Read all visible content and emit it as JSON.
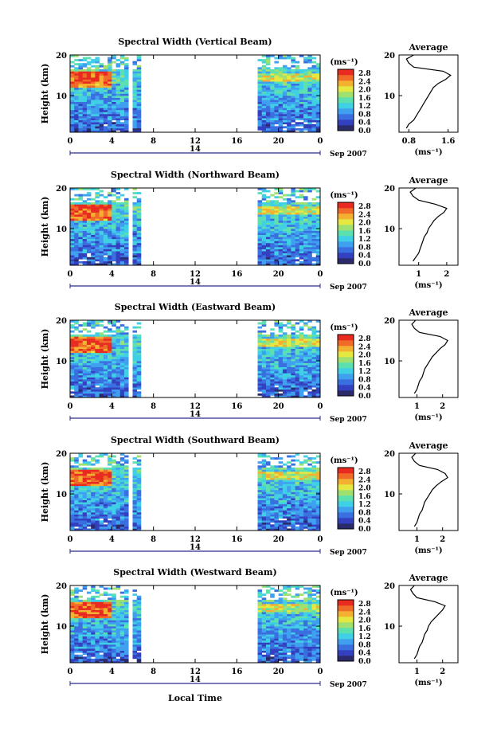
{
  "figure": {
    "date_label": "Sep 2007",
    "day_label": "14",
    "xlabel": "Local Time",
    "ylabel": "Height (km)",
    "unit_label": "(ms⁻¹)",
    "average_title": "Average"
  },
  "colors": {
    "scale": [
      "#2b2b6b",
      "#3340c0",
      "#3a6fe0",
      "#3fa0f0",
      "#40d0e6",
      "#5ce0b0",
      "#a0e070",
      "#e4e840",
      "#f4b030",
      "#f06a28",
      "#e82a20"
    ],
    "data_gap": "#ffffff",
    "average_line": "#000000"
  },
  "chart_data": [
    {
      "type": "heatmap",
      "title": "Spectral Width (Vertical Beam)",
      "x_ticks": [
        "0",
        "4",
        "8",
        "12",
        "16",
        "20",
        "0"
      ],
      "xlim": [
        0,
        24
      ],
      "ylim": [
        1,
        20
      ],
      "y_ticks": [
        "10",
        "20"
      ],
      "data_gaps_hours": [
        [
          6.9,
          17.8
        ],
        [
          5.8,
          6.0
        ]
      ],
      "colorbar": {
        "ticks": [
          "0.0",
          "0.4",
          "0.8",
          "1.2",
          "1.6",
          "2.0",
          "2.4",
          "2.8"
        ],
        "range": [
          0,
          3.0
        ]
      },
      "average": {
        "title": "Average",
        "xlabel": "(ms⁻¹)",
        "x_ticks": [
          "0.8",
          "1.6"
        ],
        "xlim": [
          0.6,
          1.8
        ],
        "height_km": [
          2,
          3,
          4,
          5,
          6,
          7,
          8,
          9,
          10,
          11,
          12,
          13,
          14,
          15,
          16,
          17,
          18,
          19,
          20
        ],
        "values": [
          0.75,
          0.8,
          0.9,
          0.95,
          1.0,
          1.05,
          1.1,
          1.15,
          1.2,
          1.25,
          1.3,
          1.4,
          1.55,
          1.65,
          1.5,
          0.9,
          0.8,
          0.75,
          0.9
        ]
      }
    },
    {
      "type": "heatmap",
      "title": "Spectral Width (Northward Beam)",
      "x_ticks": [
        "0",
        "4",
        "8",
        "12",
        "16",
        "20",
        "0"
      ],
      "xlim": [
        0,
        24
      ],
      "ylim": [
        1,
        20
      ],
      "y_ticks": [
        "10",
        "20"
      ],
      "data_gaps_hours": [
        [
          6.9,
          17.8
        ],
        [
          5.8,
          6.0
        ]
      ],
      "colorbar": {
        "ticks": [
          "0.0",
          "0.4",
          "0.8",
          "1.2",
          "1.6",
          "2.0",
          "2.4",
          "2.8"
        ],
        "range": [
          0,
          3.0
        ]
      },
      "average": {
        "title": "Average",
        "xlabel": "(ms⁻¹)",
        "x_ticks": [
          "1",
          "2"
        ],
        "xlim": [
          0.3,
          2.4
        ],
        "height_km": [
          2,
          3,
          4,
          5,
          6,
          7,
          8,
          9,
          10,
          11,
          12,
          13,
          14,
          15,
          16,
          17,
          18,
          19,
          20
        ],
        "values": [
          0.8,
          0.9,
          1.0,
          1.05,
          1.1,
          1.15,
          1.2,
          1.3,
          1.35,
          1.45,
          1.55,
          1.7,
          1.9,
          2.0,
          1.6,
          1.0,
          0.8,
          0.7,
          0.9
        ]
      }
    },
    {
      "type": "heatmap",
      "title": "Spectral Width (Eastward Beam)",
      "x_ticks": [
        "0",
        "4",
        "8",
        "12",
        "16",
        "20",
        "0"
      ],
      "xlim": [
        0,
        24
      ],
      "ylim": [
        1,
        20
      ],
      "y_ticks": [
        "10",
        "20"
      ],
      "data_gaps_hours": [
        [
          6.9,
          17.8
        ],
        [
          5.8,
          6.0
        ]
      ],
      "colorbar": {
        "ticks": [
          "0.0",
          "0.4",
          "0.8",
          "1.2",
          "1.6",
          "2.0",
          "2.4",
          "2.8"
        ],
        "range": [
          0,
          3.0
        ]
      },
      "average": {
        "title": "Average",
        "xlabel": "(ms⁻¹)",
        "x_ticks": [
          "1",
          "2"
        ],
        "xlim": [
          0.3,
          2.6
        ],
        "height_km": [
          2,
          3,
          4,
          5,
          6,
          7,
          8,
          9,
          10,
          11,
          12,
          13,
          14,
          15,
          16,
          17,
          18,
          19,
          20
        ],
        "values": [
          0.9,
          1.0,
          1.05,
          1.1,
          1.2,
          1.25,
          1.3,
          1.4,
          1.5,
          1.6,
          1.75,
          1.9,
          2.1,
          2.2,
          1.9,
          1.1,
          0.9,
          0.8,
          0.95
        ]
      }
    },
    {
      "type": "heatmap",
      "title": "Spectral Width (Southward Beam)",
      "x_ticks": [
        "0",
        "4",
        "8",
        "12",
        "16",
        "20",
        "0"
      ],
      "xlim": [
        0,
        24
      ],
      "ylim": [
        1,
        20
      ],
      "y_ticks": [
        "10",
        "20"
      ],
      "data_gaps_hours": [
        [
          6.9,
          17.8
        ],
        [
          5.8,
          6.0
        ]
      ],
      "colorbar": {
        "ticks": [
          "0.0",
          "0.4",
          "0.8",
          "1.2",
          "1.6",
          "2.0",
          "2.4",
          "2.8"
        ],
        "range": [
          0,
          3.0
        ]
      },
      "average": {
        "title": "Average",
        "xlabel": "(ms⁻¹)",
        "x_ticks": [
          "1",
          "2"
        ],
        "xlim": [
          0.3,
          2.6
        ],
        "height_km": [
          2,
          3,
          4,
          5,
          6,
          7,
          8,
          9,
          10,
          11,
          12,
          13,
          14,
          15,
          16,
          17,
          18,
          19,
          20
        ],
        "values": [
          0.9,
          1.0,
          1.05,
          1.1,
          1.2,
          1.25,
          1.3,
          1.4,
          1.5,
          1.6,
          1.75,
          1.95,
          2.2,
          2.1,
          1.8,
          1.1,
          0.9,
          0.8,
          0.95
        ]
      }
    },
    {
      "type": "heatmap",
      "title": "Spectral Width (Westward Beam)",
      "x_ticks": [
        "0",
        "4",
        "8",
        "12",
        "16",
        "20",
        "0"
      ],
      "xlim": [
        0,
        24
      ],
      "ylim": [
        1,
        20
      ],
      "y_ticks": [
        "10",
        "20"
      ],
      "data_gaps_hours": [
        [
          6.9,
          17.8
        ],
        [
          5.8,
          6.0
        ]
      ],
      "colorbar": {
        "ticks": [
          "0.0",
          "0.4",
          "0.8",
          "1.2",
          "1.6",
          "2.0",
          "2.4",
          "2.8"
        ],
        "range": [
          0,
          3.0
        ]
      },
      "average": {
        "title": "Average",
        "xlabel": "(ms⁻¹)",
        "x_ticks": [
          "1",
          "2"
        ],
        "xlim": [
          0.3,
          2.6
        ],
        "height_km": [
          2,
          3,
          4,
          5,
          6,
          7,
          8,
          9,
          10,
          11,
          12,
          13,
          14,
          15,
          16,
          17,
          18,
          19,
          20
        ],
        "values": [
          0.9,
          1.0,
          1.05,
          1.1,
          1.2,
          1.25,
          1.3,
          1.4,
          1.45,
          1.55,
          1.7,
          1.85,
          2.0,
          2.1,
          1.7,
          1.0,
          0.85,
          0.75,
          0.9
        ]
      }
    }
  ]
}
